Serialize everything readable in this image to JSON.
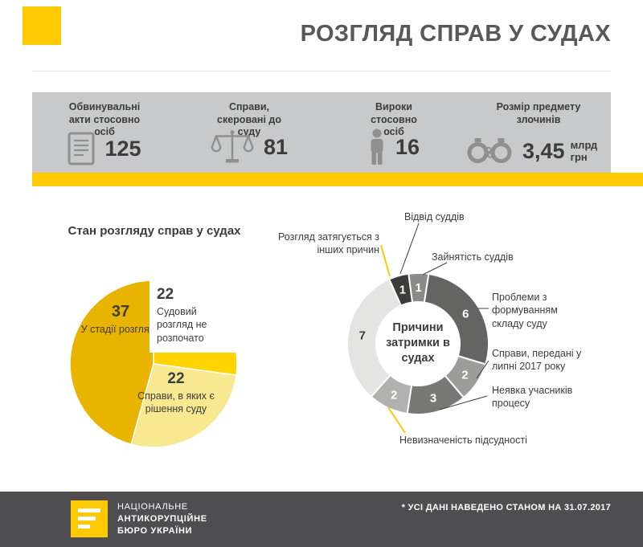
{
  "header": {
    "title": "РОЗГЛЯД СПРАВ У СУДАХ"
  },
  "stats": [
    {
      "label": "Обвинувальні акти стосовно осіб",
      "value": "125",
      "unit": "",
      "icon": "document-icon"
    },
    {
      "label": "Справи, скеровані до суду",
      "value": "81",
      "unit": "",
      "icon": "scales-icon"
    },
    {
      "label": "Вироки стосовно осіб",
      "value": "16",
      "unit": "",
      "icon": "person-icon"
    },
    {
      "label": "Розмір предмету злочинів",
      "value": "3,45",
      "unit": "млрд грн",
      "icon": "handcuffs-icon"
    }
  ],
  "colors": {
    "brand_yellow": "#FEC900",
    "bar_gray": "#C8C9CA",
    "footer_gray": "#4E4E50",
    "text_dark": "#3C3C3B"
  },
  "chart_data": [
    {
      "type": "pie",
      "title": "Стан розгляду справ у судах",
      "total": 81,
      "start_angle_deg": 0,
      "slices": [
        {
          "label": "Судовий розгляд не розпочато",
          "value": 22,
          "color": "#FFD400"
        },
        {
          "label": "Справи, в яких є рішення суду",
          "value": 22,
          "color": "#F8E88F"
        },
        {
          "label": "У стадії розгляду",
          "value": 37,
          "color": "#E9B400"
        }
      ]
    },
    {
      "type": "donut",
      "title": "Причини затримки в судах",
      "total": 22,
      "start_angle_deg": -24,
      "slices": [
        {
          "label": "Відвід суддів",
          "value": 1,
          "color": "#3C3C3B"
        },
        {
          "label": "Зайнятість суддів",
          "value": 1,
          "color": "#8A8A89"
        },
        {
          "label": "Проблеми з формуванням складу суду",
          "value": 6,
          "color": "#646463"
        },
        {
          "label": "Справи, передані у липні 2017 року",
          "value": 2,
          "color": "#9C9C9B"
        },
        {
          "label": "Неявка учасників процесу",
          "value": 3,
          "color": "#787877"
        },
        {
          "label": "Невизначеність підсудності",
          "value": 2,
          "color": "#B1B1B0"
        },
        {
          "label": "Розгляд затягується з інших причин",
          "value": 7,
          "color": "#E4E4E3"
        }
      ]
    }
  ],
  "footer": {
    "org_lines": [
      "НАЦІОНАЛЬНЕ",
      "АНТИКОРУПЦІЙНЕ",
      "БЮРО УКРАЇНИ"
    ],
    "note": "* УСІ ДАНІ НАВЕДЕНО СТАНОМ НА 31.07.2017"
  }
}
